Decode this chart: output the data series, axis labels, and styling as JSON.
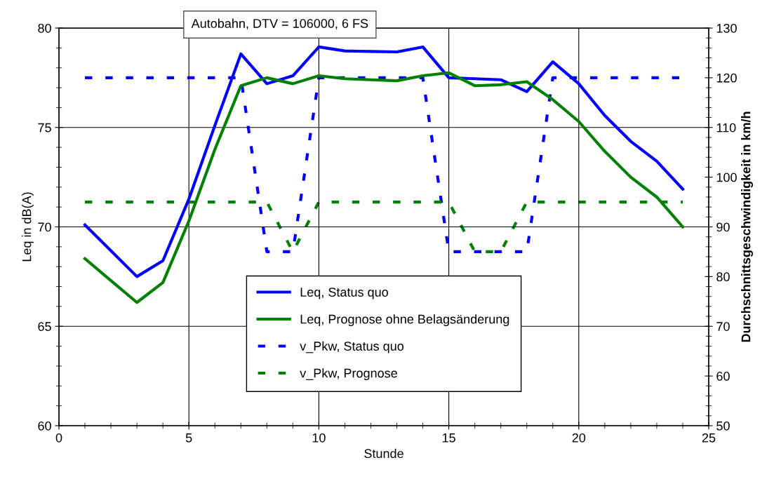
{
  "chart_data": {
    "type": "line",
    "title": "Autobahn, DTV = 106000, 6 FS",
    "xlabel": "Stunde",
    "ylabel": "Leq in dB(A)",
    "y2label": "Durchschnittsgeschwindigkeit in km/h",
    "x": [
      1,
      2,
      3,
      4,
      5,
      6,
      7,
      8,
      9,
      10,
      11,
      12,
      13,
      14,
      15,
      16,
      17,
      18,
      19,
      20,
      21,
      22,
      23,
      24
    ],
    "series": [
      {
        "name": "Leq, Status quo",
        "color": "#0000ff",
        "line_style": "solid",
        "values": [
          70.1,
          68.8,
          67.5,
          68.3,
          71.4,
          75.1,
          78.7,
          77.2,
          77.6,
          79.05,
          78.85,
          78.82,
          78.8,
          79.05,
          77.5,
          77.45,
          77.4,
          76.8,
          78.3,
          77.2,
          75.6,
          74.3,
          73.3,
          71.9
        ]
      },
      {
        "name": "Leq, Prognose ohne Belagsänderung",
        "color": "#008000",
        "line_style": "solid",
        "values": [
          68.4,
          67.3,
          66.2,
          67.2,
          70.3,
          73.9,
          77.1,
          77.5,
          77.2,
          77.6,
          77.45,
          77.4,
          77.35,
          77.6,
          77.75,
          77.1,
          77.15,
          77.3,
          76.4,
          75.3,
          73.8,
          72.5,
          71.5,
          70.0
        ]
      },
      {
        "name": "v_Pkw, Status quo",
        "color": "#0000ff",
        "line_style": "dashed",
        "axis": "y2",
        "values": [
          120,
          120,
          120,
          120,
          120,
          120,
          120,
          85,
          85,
          120,
          120,
          120,
          120,
          120,
          85,
          85,
          85,
          85,
          120,
          120,
          120,
          120,
          120,
          120
        ]
      },
      {
        "name": "v_Pkw, Prognose",
        "color": "#008000",
        "line_style": "dashed",
        "axis": "y2",
        "values": [
          95,
          95,
          95,
          95,
          95,
          95,
          95,
          95,
          85,
          95,
          95,
          95,
          95,
          95,
          95,
          85,
          85,
          95,
          95,
          95,
          95,
          95,
          95,
          95
        ]
      }
    ],
    "xlim": [
      0,
      25
    ],
    "ylim": [
      60,
      80
    ],
    "y2lim": [
      50,
      130
    ],
    "xticks": [
      0,
      {
        "value": 1,
        "label": null
      },
      {
        "value": 2,
        "label": null
      },
      {
        "value": 3,
        "label": null
      },
      {
        "value": 4,
        "label": null
      },
      5,
      {
        "value": 6,
        "label": null
      },
      {
        "value": 7,
        "label": null
      },
      {
        "value": 8,
        "label": null
      },
      {
        "value": 9,
        "label": null
      },
      10,
      {
        "value": 11,
        "label": null
      },
      {
        "value": 12,
        "label": null
      },
      {
        "value": 13,
        "label": null
      },
      {
        "value": 14,
        "label": null
      },
      15,
      {
        "value": 16,
        "label": null
      },
      {
        "value": 17,
        "label": null
      },
      {
        "value": 18,
        "label": null
      },
      {
        "value": 19,
        "label": null
      },
      20,
      {
        "value": 21,
        "label": null
      },
      {
        "value": 22,
        "label": null
      },
      {
        "value": 23,
        "label": null
      },
      {
        "value": 24,
        "label": null
      },
      25
    ],
    "yticks": [
      60,
      {
        "value": 61,
        "label": null
      },
      {
        "value": 62,
        "label": null
      },
      {
        "value": 63,
        "label": null
      },
      {
        "value": 64,
        "label": null
      },
      65,
      {
        "value": 66,
        "label": null
      },
      {
        "value": 67,
        "label": null
      },
      {
        "value": 68,
        "label": null
      },
      {
        "value": 69,
        "label": null
      },
      70,
      {
        "value": 71,
        "label": null
      },
      {
        "value": 72,
        "label": null
      },
      {
        "value": 73,
        "label": null
      },
      {
        "value": 74,
        "label": null
      },
      75,
      {
        "value": 76,
        "label": null
      },
      {
        "value": 77,
        "label": null
      },
      {
        "value": 78,
        "label": null
      },
      {
        "value": 79,
        "label": null
      },
      80
    ],
    "y2ticks": [
      50,
      {
        "value": 52,
        "label": null
      },
      {
        "value": 54,
        "label": null
      },
      {
        "value": 56,
        "label": null
      },
      {
        "value": 58,
        "label": null
      },
      60,
      {
        "value": 62,
        "label": null
      },
      {
        "value": 64,
        "label": null
      },
      {
        "value": 66,
        "label": null
      },
      {
        "value": 68,
        "label": null
      },
      70,
      {
        "value": 72,
        "label": null
      },
      {
        "value": 74,
        "label": null
      },
      {
        "value": 76,
        "label": null
      },
      {
        "value": 78,
        "label": null
      },
      80,
      {
        "value": 82,
        "label": null
      },
      {
        "value": 84,
        "label": null
      },
      {
        "value": 86,
        "label": null
      },
      {
        "value": 88,
        "label": null
      },
      90,
      {
        "value": 92,
        "label": null
      },
      {
        "value": 94,
        "label": null
      },
      {
        "value": 96,
        "label": null
      },
      {
        "value": 98,
        "label": null
      },
      100,
      {
        "value": 102,
        "label": null
      },
      {
        "value": 104,
        "label": null
      },
      {
        "value": 106,
        "label": null
      },
      {
        "value": 108,
        "label": null
      },
      110,
      {
        "value": 112,
        "label": null
      },
      {
        "value": 114,
        "label": null
      },
      {
        "value": 116,
        "label": null
      },
      {
        "value": 118,
        "label": null
      },
      120,
      {
        "value": 122,
        "label": null
      },
      {
        "value": 124,
        "label": null
      },
      {
        "value": 126,
        "label": null
      },
      {
        "value": 128,
        "label": null
      },
      130
    ],
    "grid": true,
    "legend": "bottom",
    "marker": "none"
  }
}
